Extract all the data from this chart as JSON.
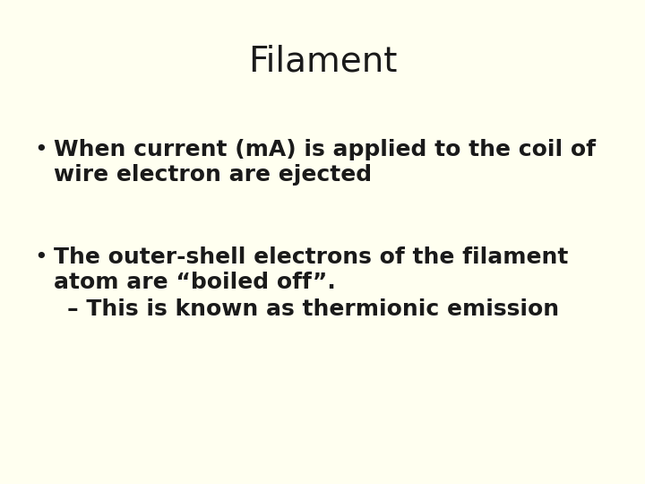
{
  "background_color": "#fffff0",
  "title": "Filament",
  "title_fontsize": 28,
  "title_color": "#1a1a1a",
  "bullet1_line1": "When current (mA) is applied to the coil of",
  "bullet1_line2": "wire electron are ejected",
  "bullet2_line1": "The outer-shell electrons of the filament",
  "bullet2_line2": "atom are “boiled off”.",
  "bullet2_line3": "– This is known as thermionic emission",
  "bullet_fontsize": 18,
  "bullet_color": "#1a1a1a",
  "bullet_symbol": "•",
  "font_family": "DejaVu Sans"
}
